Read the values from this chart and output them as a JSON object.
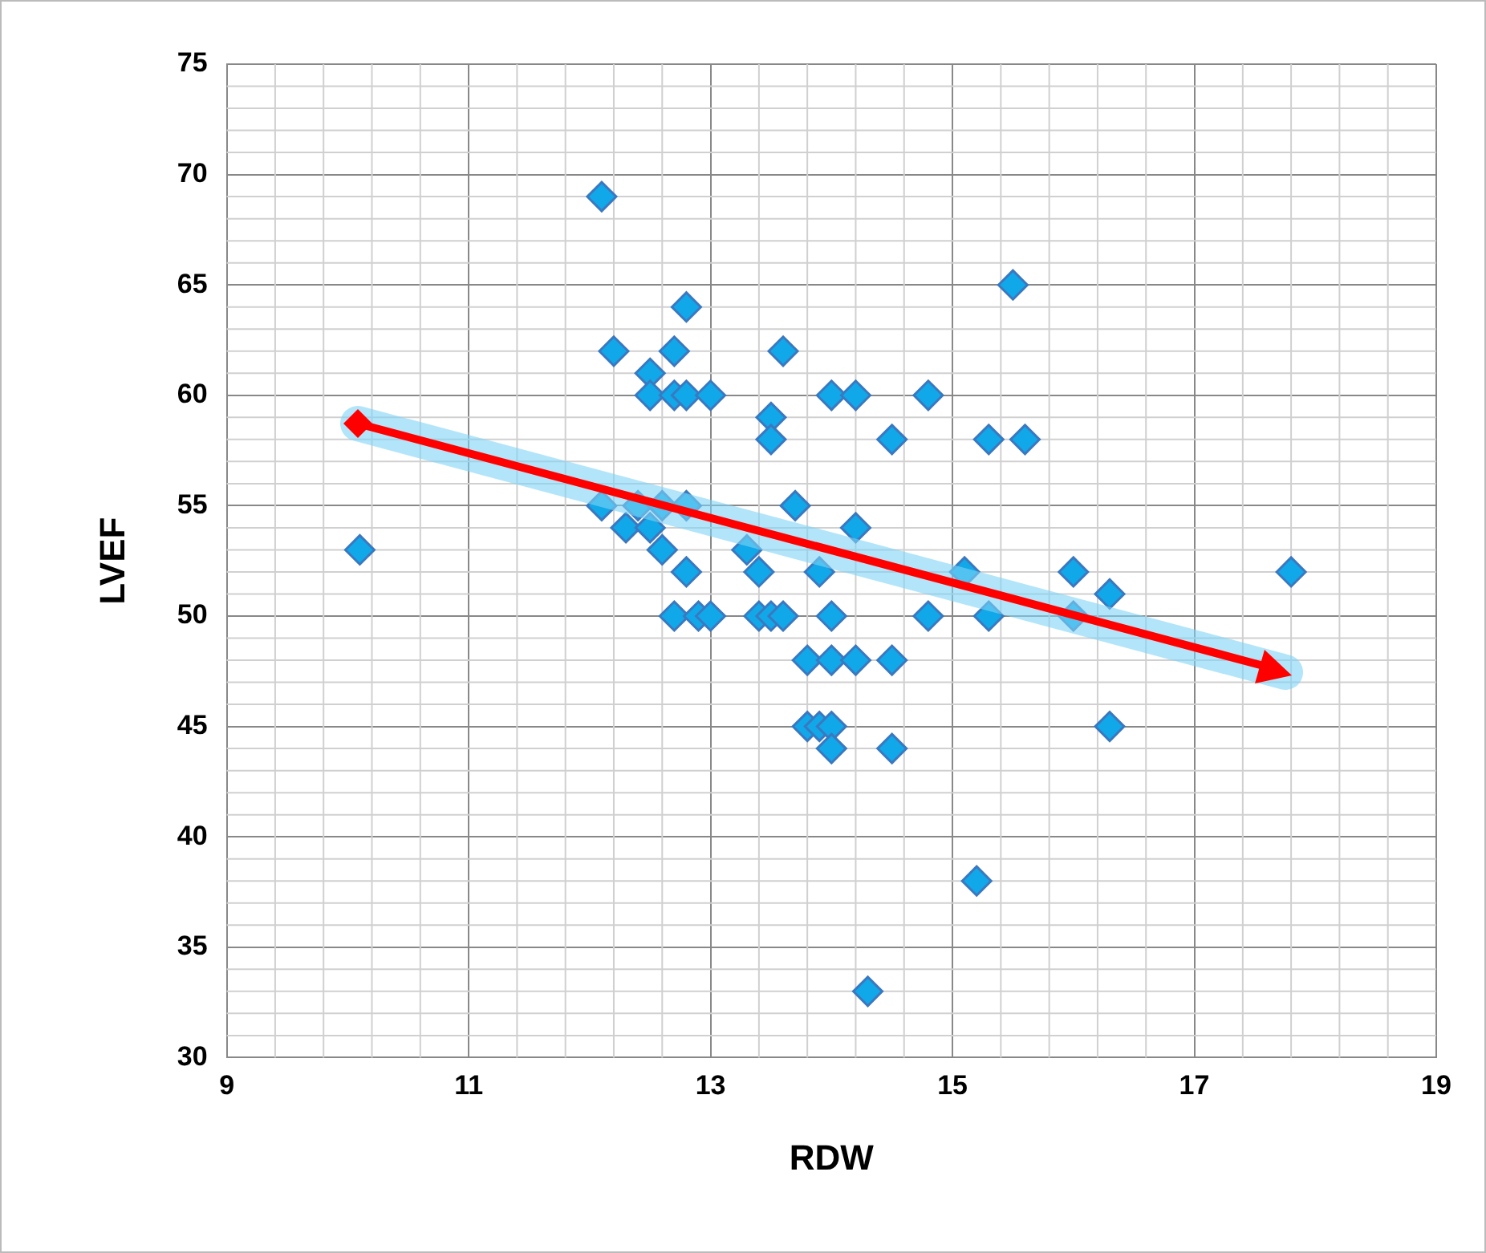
{
  "chart_data": {
    "type": "scatter",
    "xlabel": "RDW",
    "ylabel": "LVEF",
    "xlim": [
      9,
      19
    ],
    "xticks": [
      9,
      11,
      13,
      15,
      17,
      19
    ],
    "ylim": [
      30,
      75
    ],
    "yticks": [
      30,
      35,
      40,
      45,
      50,
      55,
      60,
      65,
      70,
      75
    ],
    "grid": true,
    "legend": false,
    "series": [
      {
        "color": "#10a8e8",
        "marker": "diamond",
        "x": [
          10.1,
          12.1,
          12.8,
          12.2,
          12.7,
          13.6,
          12.5,
          12.5,
          12.7,
          12.8,
          13.0,
          12.1,
          12.4,
          12.6,
          12.8,
          12.3,
          12.5,
          12.6,
          12.8,
          12.7,
          12.9,
          13.0,
          14.0,
          14.2,
          14.8,
          13.5,
          13.5,
          14.5,
          15.3,
          15.6,
          13.7,
          14.2,
          13.3,
          13.4,
          13.9,
          15.1,
          16.0,
          16.3,
          13.4,
          13.5,
          13.6,
          14.0,
          14.8,
          15.3,
          16.0,
          13.8,
          14.0,
          14.2,
          14.5,
          13.8,
          13.9,
          14.0,
          14.0,
          14.5,
          16.3,
          15.2,
          14.3,
          15.5,
          17.8
        ],
        "values": [
          53,
          69,
          64,
          62,
          62,
          62,
          61,
          60,
          60,
          60,
          60,
          55,
          55,
          55,
          55,
          54,
          54,
          53,
          52,
          50,
          50,
          50,
          60,
          60,
          60,
          59,
          58,
          58,
          58,
          58,
          55,
          54,
          53,
          52,
          52,
          52,
          52,
          51,
          50,
          50,
          50,
          50,
          50,
          50,
          50,
          48,
          48,
          48,
          48,
          45,
          45,
          45,
          44,
          44,
          45,
          38,
          33,
          65,
          52
        ]
      }
    ]
  }
}
